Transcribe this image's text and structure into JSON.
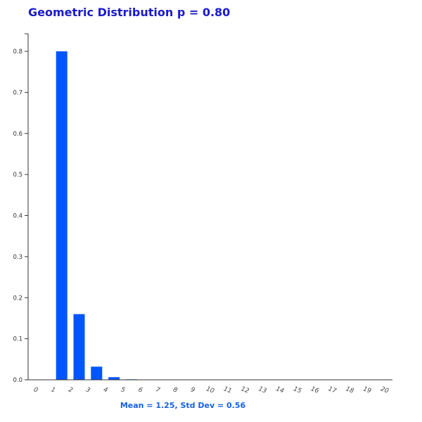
{
  "chart_data": {
    "type": "bar",
    "title": "Geometric Distribution p = 0.80",
    "subtitle": "Mean = 1.25, Std Dev = 0.56",
    "xlabel": "",
    "ylabel": "",
    "categories": [
      "0",
      "1",
      "2",
      "3",
      "4",
      "5",
      "6",
      "7",
      "8",
      "9",
      "10",
      "11",
      "12",
      "13",
      "14",
      "15",
      "16",
      "17",
      "18",
      "19",
      "20"
    ],
    "values": [
      0,
      0.8,
      0.16,
      0.032,
      0.0064,
      0.00128,
      0.000256,
      5.12e-05,
      1e-05,
      2e-06,
      0,
      0,
      0,
      0,
      0,
      0,
      0,
      0,
      0,
      0,
      0
    ],
    "yticks": [
      "0.0",
      "0.1",
      "0.2",
      "0.3",
      "0.4",
      "0.5",
      "0.6",
      "0.7",
      "0.8"
    ],
    "ylim": [
      0,
      0.8
    ],
    "grid": false,
    "bar_color": "#0055ff"
  }
}
